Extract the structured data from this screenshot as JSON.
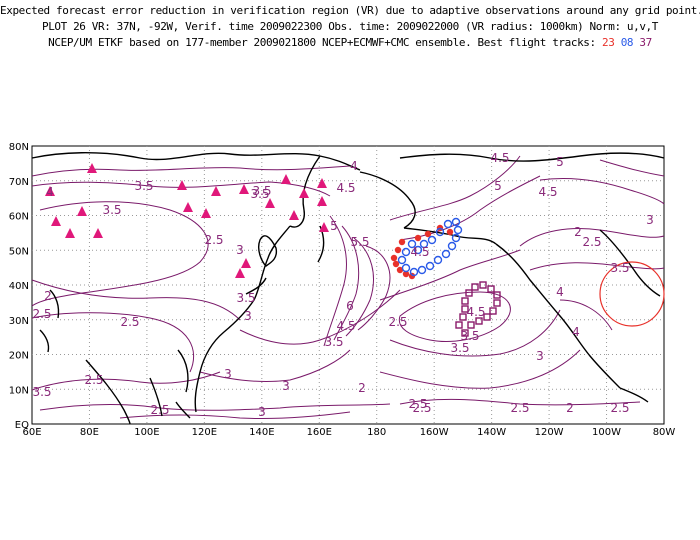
{
  "header": {
    "line1": "Expected forecast error reduction in verification region (VR) due to adaptive observations around any grid point.",
    "line2": "PLOT 26 VR: 37N, -92W, Verif. time 2009022300 Obs. time: 2009022000 (VR radius: 1000km) Norm: u,v,T",
    "line3_prefix": "NCEP/UM ETKF based on 177-member 2009021800 NCEP+ECMWF+CMC ensemble. Best flight tracks:",
    "track_a": "23",
    "track_b": "08",
    "track_c": "37"
  },
  "map": {
    "lon_ticks": [
      "60E",
      "80E",
      "100E",
      "120E",
      "140E",
      "160E",
      "180",
      "160W",
      "140W",
      "120W",
      "100W",
      "80W"
    ],
    "lat_ticks": [
      "EQ",
      "10N",
      "20N",
      "30N",
      "40N",
      "50N",
      "60N",
      "70N",
      "80N"
    ],
    "contour_labels": [
      "4.5",
      "5",
      "5",
      "4",
      "3.5",
      "4.5",
      "3.5",
      "4.5",
      "4",
      "3.5",
      "3.5",
      "2.5",
      "3",
      "5.5",
      "5",
      "4.5",
      "6",
      "4.5",
      "3.5",
      "2.5",
      "3.5",
      "3.5",
      "3",
      "2.5",
      "3",
      "2.5",
      "2.5",
      "3",
      "2",
      "2.5",
      "2.5",
      "3",
      "2",
      "2.5",
      "3.5",
      "2",
      "2.5",
      "2",
      "2.5",
      "3",
      "4",
      "3.5",
      "4",
      "3.5",
      "4.5",
      "3",
      "2.5"
    ],
    "colors": {
      "contour": "#7a1a6a",
      "coast": "#000000",
      "grid": "#999999",
      "triangles": "#e0187a",
      "track_red": "#e8312a",
      "track_blue": "#2a5ae8",
      "track_purple": "#8a1a6a",
      "vr_circle": "#e8312a"
    }
  }
}
